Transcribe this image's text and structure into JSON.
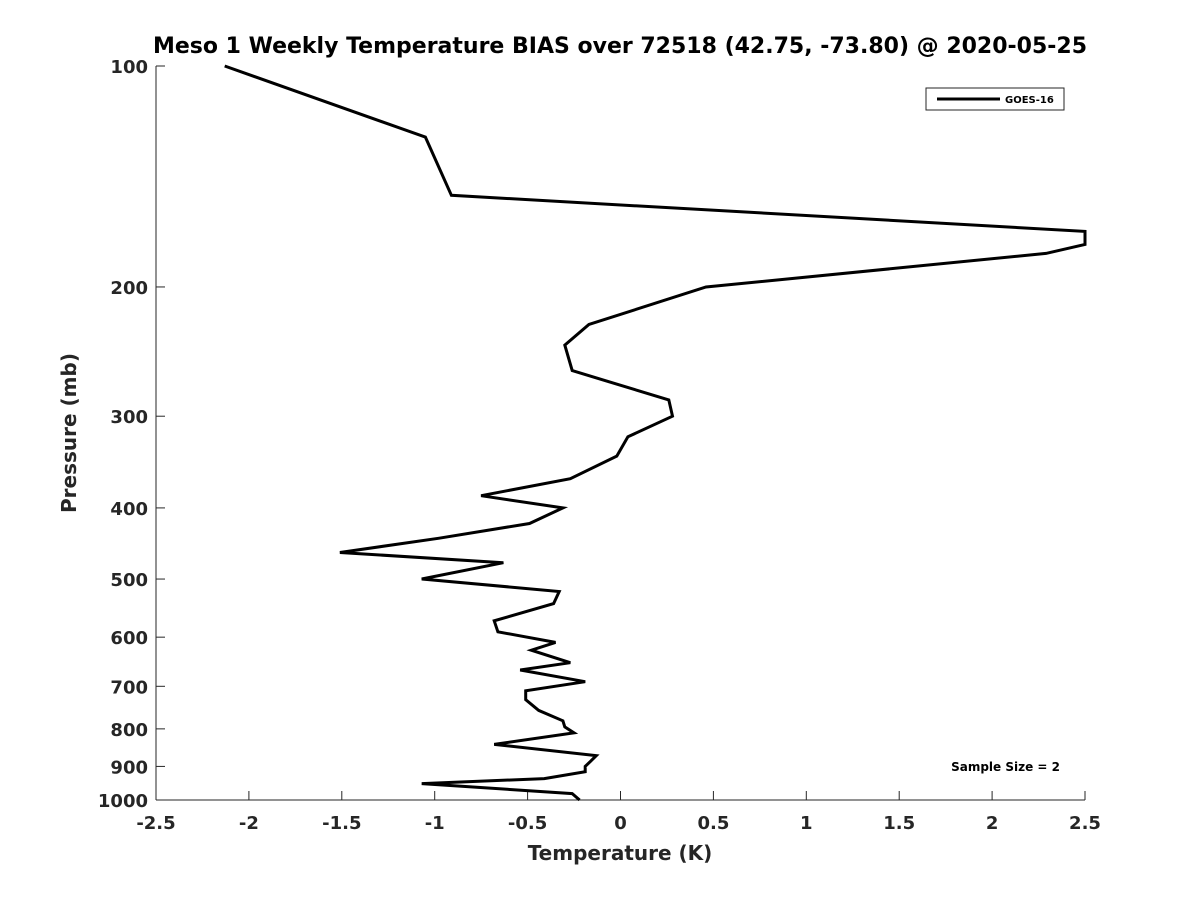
{
  "chart_data": {
    "type": "line",
    "title": "Meso 1 Weekly Temperature BIAS over 72518 (42.75, -73.80) @ 2020-05-25",
    "xlabel": "Temperature (K)",
    "ylabel": "Pressure (mb)",
    "xlim": [
      -2.5,
      2.5
    ],
    "ylim": [
      100,
      1000
    ],
    "yscale": "log",
    "y_reversed": true,
    "grid": false,
    "xticks": [
      -2.5,
      -2,
      -1.5,
      -1,
      -0.5,
      0,
      0.5,
      1,
      1.5,
      2,
      2.5
    ],
    "xtick_labels": [
      "-2.5",
      "-2",
      "-1.5",
      "-1",
      "-0.5",
      "0",
      "0.5",
      "1",
      "1.5",
      "2",
      "2.5"
    ],
    "yticks": [
      100,
      200,
      300,
      400,
      500,
      600,
      700,
      800,
      900,
      1000
    ],
    "ytick_labels": [
      "100",
      "200",
      "300",
      "400",
      "500",
      "600",
      "700",
      "800",
      "900",
      "1000"
    ],
    "legend": {
      "position": "top-right",
      "entries": [
        "GOES-16"
      ]
    },
    "annotation": "Sample Size = 2",
    "series": [
      {
        "name": "GOES-16",
        "color": "#000000",
        "points": [
          [
            -2.13,
            100
          ],
          [
            -1.05,
            125
          ],
          [
            -0.91,
            150
          ],
          [
            2.5,
            168
          ],
          [
            2.5,
            175
          ],
          [
            2.29,
            180
          ],
          [
            0.46,
            200
          ],
          [
            -0.17,
            225
          ],
          [
            -0.3,
            240
          ],
          [
            -0.26,
            260
          ],
          [
            0.26,
            285
          ],
          [
            0.28,
            300
          ],
          [
            0.04,
            320
          ],
          [
            -0.02,
            340
          ],
          [
            -0.27,
            365
          ],
          [
            -0.75,
            385
          ],
          [
            -0.31,
            400
          ],
          [
            -0.49,
            420
          ],
          [
            -0.98,
            440
          ],
          [
            -1.51,
            460
          ],
          [
            -0.63,
            475
          ],
          [
            -1.07,
            500
          ],
          [
            -0.33,
            520
          ],
          [
            -0.36,
            540
          ],
          [
            -0.68,
            570
          ],
          [
            -0.66,
            590
          ],
          [
            -0.35,
            610
          ],
          [
            -0.48,
            625
          ],
          [
            -0.27,
            650
          ],
          [
            -0.54,
            665
          ],
          [
            -0.19,
            690
          ],
          [
            -0.51,
            710
          ],
          [
            -0.51,
            730
          ],
          [
            -0.44,
            755
          ],
          [
            -0.31,
            780
          ],
          [
            -0.3,
            795
          ],
          [
            -0.25,
            810
          ],
          [
            -0.68,
            840
          ],
          [
            -0.13,
            870
          ],
          [
            -0.16,
            885
          ],
          [
            -0.19,
            900
          ],
          [
            -0.19,
            915
          ],
          [
            -0.41,
            935
          ],
          [
            -1.07,
            950
          ],
          [
            -0.26,
            980
          ],
          [
            -0.22,
            1000
          ]
        ]
      }
    ]
  }
}
